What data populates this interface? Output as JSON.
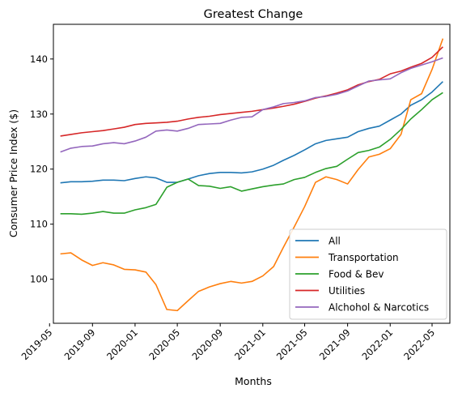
{
  "chart_data": {
    "type": "line",
    "title": "Greatest Change",
    "xlabel": "Months",
    "ylabel": "Consumer Price Index ($)",
    "x_ticks": [
      "2019-05",
      "2019-09",
      "2020-01",
      "2020-05",
      "2020-09",
      "2021-01",
      "2021-05",
      "2021-09",
      "2022-01",
      "2022-05"
    ],
    "y_ticks": [
      100,
      110,
      120,
      130,
      140
    ],
    "ylim": [
      92,
      146.3
    ],
    "xlim": [
      "2019-05-12",
      "2022-06-21"
    ],
    "grid": false,
    "legend": "lower-right",
    "x": [
      "2019-06",
      "2019-07",
      "2019-08",
      "2019-09",
      "2019-10",
      "2019-11",
      "2019-12",
      "2020-01",
      "2020-02",
      "2020-03",
      "2020-04",
      "2020-05",
      "2020-06",
      "2020-07",
      "2020-08",
      "2020-09",
      "2020-10",
      "2020-11",
      "2020-12",
      "2021-01",
      "2021-02",
      "2021-03",
      "2021-04",
      "2021-05",
      "2021-06",
      "2021-07",
      "2021-08",
      "2021-09",
      "2021-10",
      "2021-11",
      "2021-12",
      "2022-01",
      "2022-02",
      "2022-03",
      "2022-04",
      "2022-05",
      "2022-06"
    ],
    "series": [
      {
        "name": "All",
        "color": "#1f77b4",
        "values": [
          117.5,
          117.7,
          117.7,
          117.8,
          118.0,
          118.0,
          117.9,
          118.3,
          118.6,
          118.4,
          117.6,
          117.6,
          118.2,
          118.8,
          119.2,
          119.4,
          119.4,
          119.3,
          119.5,
          120.0,
          120.7,
          121.6,
          122.5,
          123.5,
          124.6,
          125.2,
          125.5,
          125.8,
          126.8,
          127.4,
          127.8,
          128.9,
          130.0,
          131.6,
          132.6,
          134.0,
          135.9
        ]
      },
      {
        "name": "Transportation",
        "color": "#ff7f0e",
        "values": [
          104.6,
          104.8,
          103.5,
          102.5,
          103.0,
          102.6,
          101.8,
          101.7,
          101.3,
          99.0,
          94.5,
          94.3,
          96.1,
          97.8,
          98.6,
          99.2,
          99.6,
          99.3,
          99.6,
          100.6,
          102.3,
          105.8,
          109.5,
          113.2,
          117.6,
          118.6,
          118.1,
          117.3,
          119.9,
          122.2,
          122.7,
          123.7,
          126.3,
          132.6,
          133.7,
          138.1,
          143.7
        ]
      },
      {
        "name": "Food & Bev",
        "color": "#2ca02c",
        "values": [
          111.9,
          111.9,
          111.8,
          112.0,
          112.3,
          112.0,
          112.0,
          112.6,
          113.0,
          113.6,
          116.7,
          117.6,
          118.2,
          117.0,
          116.9,
          116.5,
          116.8,
          116.0,
          116.4,
          116.8,
          117.1,
          117.3,
          118.1,
          118.5,
          119.4,
          120.1,
          120.5,
          121.8,
          123.0,
          123.4,
          124.0,
          125.4,
          127.2,
          129.1,
          130.8,
          132.6,
          133.9
        ]
      },
      {
        "name": "Utilities",
        "color": "#d62728",
        "values": [
          126.0,
          126.3,
          126.6,
          126.8,
          127.0,
          127.3,
          127.6,
          128.1,
          128.3,
          128.4,
          128.5,
          128.7,
          129.1,
          129.4,
          129.6,
          129.9,
          130.1,
          130.3,
          130.5,
          130.8,
          131.1,
          131.4,
          131.8,
          132.3,
          132.9,
          133.3,
          133.8,
          134.4,
          135.3,
          135.9,
          136.3,
          137.3,
          137.8,
          138.5,
          139.2,
          140.3,
          142.2
        ]
      },
      {
        "name": "Alchohol & Narcotics",
        "color": "#9467bd",
        "values": [
          123.1,
          123.8,
          124.1,
          124.2,
          124.6,
          124.8,
          124.6,
          125.1,
          125.8,
          126.9,
          127.1,
          126.9,
          127.4,
          128.1,
          128.2,
          128.3,
          128.9,
          129.4,
          129.5,
          130.8,
          131.3,
          131.9,
          132.1,
          132.4,
          133.0,
          133.2,
          133.6,
          134.2,
          135.1,
          136.0,
          136.2,
          136.4,
          137.5,
          138.3,
          138.9,
          139.5,
          140.2
        ]
      }
    ]
  }
}
